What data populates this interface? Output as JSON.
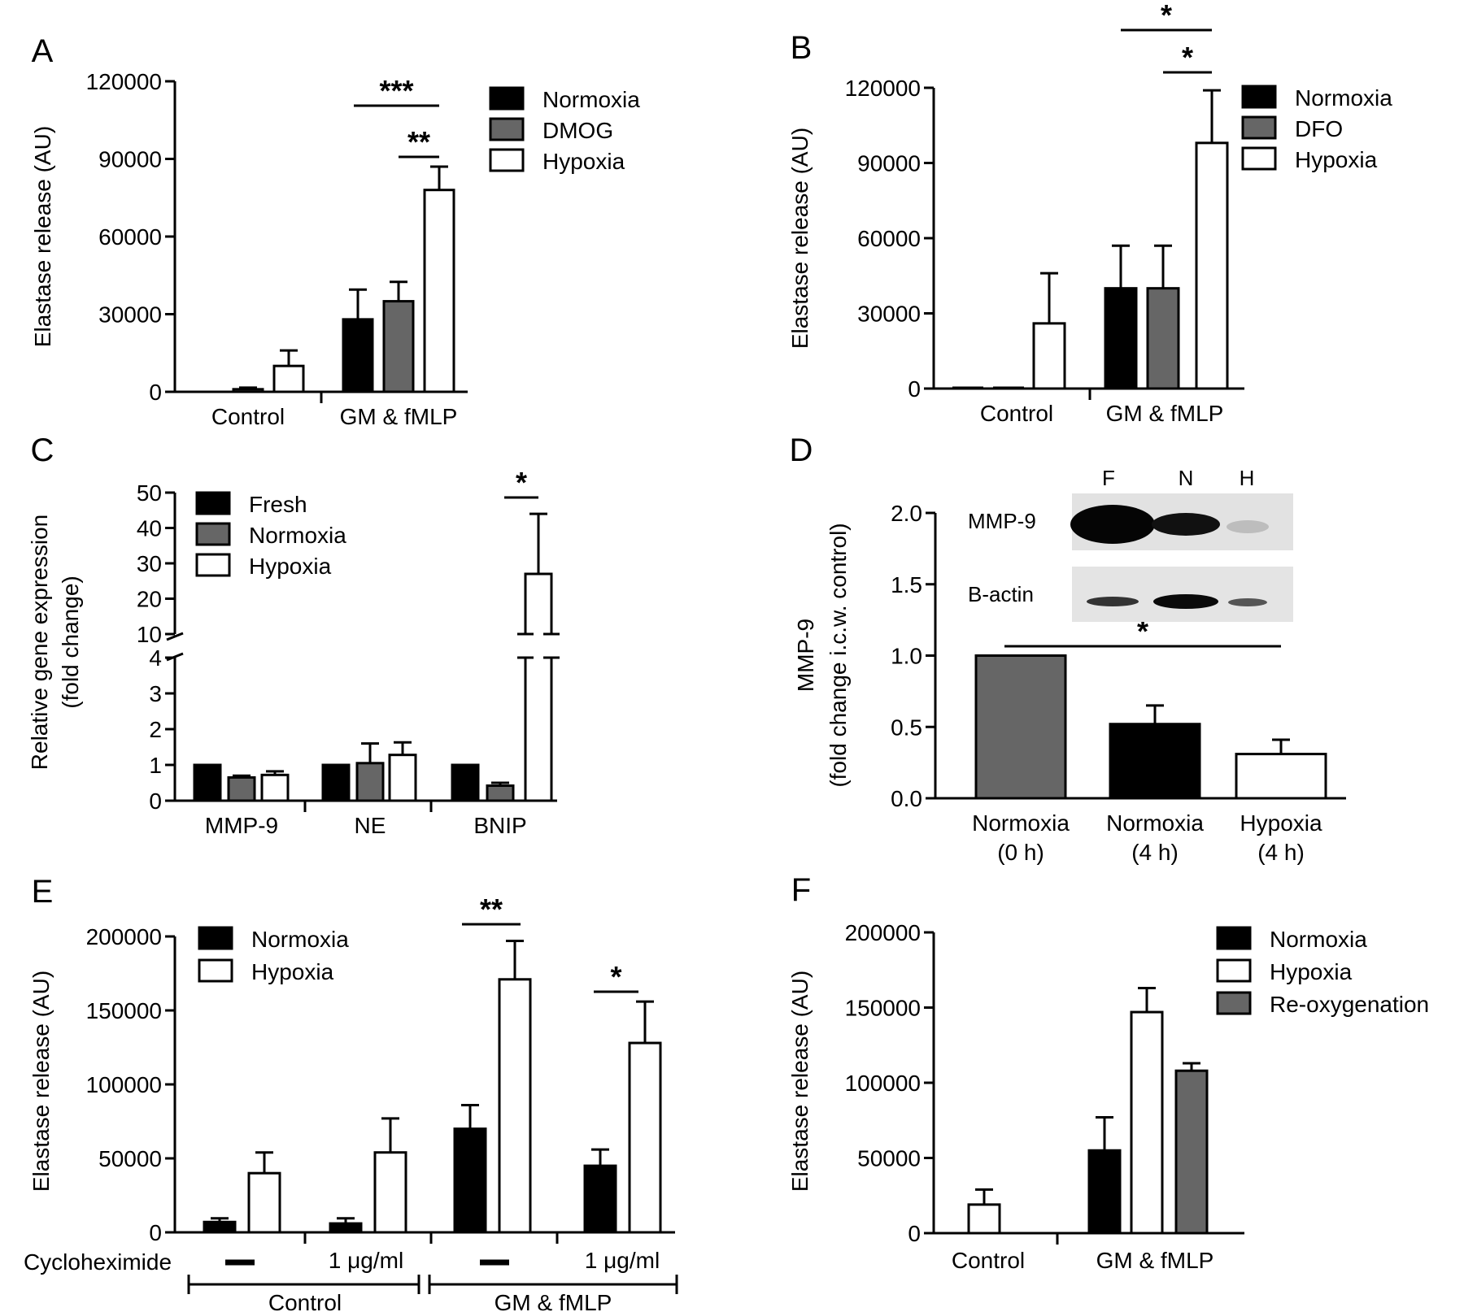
{
  "colors": {
    "black": "#000000",
    "grey": "#666666",
    "white": "#ffffff"
  },
  "panels": [
    {
      "letter": "A",
      "ylabel": "Elastase release (AU)",
      "ticks": [
        "0",
        "30000",
        "60000",
        "90000",
        "120000"
      ],
      "groups": [
        "Control",
        "GM & fMLP"
      ],
      "legend": [
        {
          "label": "Normoxia",
          "color": "black"
        },
        {
          "label": "DMOG",
          "color": "grey"
        },
        {
          "label": "Hypoxia",
          "color": "white"
        }
      ],
      "sig": [
        "***",
        "**"
      ]
    },
    {
      "letter": "B",
      "ylabel": "Elastase release (AU)",
      "ticks": [
        "0",
        "30000",
        "60000",
        "90000",
        "120000"
      ],
      "groups": [
        "Control",
        "GM & fMLP"
      ],
      "legend": [
        {
          "label": "Normoxia",
          "color": "black"
        },
        {
          "label": "DFO",
          "color": "grey"
        },
        {
          "label": "Hypoxia",
          "color": "white"
        }
      ],
      "sig": [
        "*",
        "*"
      ]
    },
    {
      "letter": "C",
      "ylabel1": "Relative gene expression",
      "ylabel2": "(fold change)",
      "ticks_low": [
        "0",
        "1",
        "2",
        "3",
        "4"
      ],
      "ticks_high": [
        "10",
        "20",
        "30",
        "40",
        "50"
      ],
      "groups": [
        "MMP-9",
        "NE",
        "BNIP"
      ],
      "legend": [
        {
          "label": "Fresh",
          "color": "black"
        },
        {
          "label": "Normoxia",
          "color": "grey"
        },
        {
          "label": "Hypoxia",
          "color": "white"
        }
      ],
      "sig": [
        "*"
      ]
    },
    {
      "letter": "D",
      "ylabel1": "MMP-9",
      "ylabel2": "(fold change i.c.w. control)",
      "ticks": [
        "0.0",
        "0.5",
        "1.0",
        "1.5",
        "2.0"
      ],
      "categories": [
        [
          "Normoxia",
          "(0 h)"
        ],
        [
          "Normoxia",
          "(4 h)"
        ],
        [
          "Hypoxia",
          "(4 h)"
        ]
      ],
      "blot": {
        "lanes": [
          "F",
          "N",
          "H"
        ],
        "rows": [
          "MMP-9",
          "B-actin"
        ]
      },
      "sig": [
        "*"
      ]
    },
    {
      "letter": "E",
      "ylabel": "Elastase release (AU)",
      "ticks": [
        "0",
        "50000",
        "100000",
        "150000",
        "200000"
      ],
      "legend": [
        {
          "label": "Normoxia",
          "color": "black"
        },
        {
          "label": "Hypoxia",
          "color": "white"
        }
      ],
      "treatment_label": "Cycloheximide",
      "treatments": [
        "—",
        "1 μg/ml",
        "—",
        "1 μg/ml"
      ],
      "groups": [
        "Control",
        "GM & fMLP"
      ],
      "sig": [
        "**",
        "*"
      ]
    },
    {
      "letter": "F",
      "ylabel": "Elastase release (AU)",
      "ticks": [
        "0",
        "50000",
        "100000",
        "150000",
        "200000"
      ],
      "groups": [
        "Control",
        "GM & fMLP"
      ],
      "legend": [
        {
          "label": "Normoxia",
          "color": "black"
        },
        {
          "label": "Hypoxia",
          "color": "white"
        },
        {
          "label": "Re-oxygenation",
          "color": "grey"
        }
      ]
    }
  ],
  "chart_data": [
    {
      "panel": "A",
      "type": "bar",
      "ylim": [
        0,
        120000
      ],
      "categories": [
        "Control",
        "GM & fMLP"
      ],
      "series": [
        {
          "name": "Normoxia",
          "values": [
            0,
            28000
          ],
          "errors": [
            0,
            11500
          ]
        },
        {
          "name": "DMOG",
          "values": [
            1000,
            35000
          ],
          "errors": [
            600,
            7500
          ]
        },
        {
          "name": "Hypoxia",
          "values": [
            10000,
            78000
          ],
          "errors": [
            6000,
            9000
          ]
        }
      ]
    },
    {
      "panel": "B",
      "type": "bar",
      "ylim": [
        0,
        120000
      ],
      "categories": [
        "Control",
        "GM & fMLP"
      ],
      "series": [
        {
          "name": "Normoxia",
          "values": [
            0,
            40000
          ],
          "errors": [
            0,
            17000
          ]
        },
        {
          "name": "DFO",
          "values": [
            0,
            40000
          ],
          "errors": [
            0,
            17000
          ]
        },
        {
          "name": "Hypoxia",
          "values": [
            26000,
            98000
          ],
          "errors": [
            20000,
            21000
          ]
        }
      ]
    },
    {
      "panel": "C",
      "type": "bar",
      "ylim": [
        0,
        50
      ],
      "axis_break": [
        4,
        10
      ],
      "categories": [
        "MMP-9",
        "NE",
        "BNIP"
      ],
      "series": [
        {
          "name": "Fresh",
          "values": [
            1,
            1,
            1
          ],
          "errors": [
            0,
            0,
            0
          ]
        },
        {
          "name": "Normoxia",
          "values": [
            0.65,
            1.05,
            0.42
          ],
          "errors": [
            0.05,
            0.55,
            0.08
          ]
        },
        {
          "name": "Hypoxia",
          "values": [
            0.72,
            1.28,
            27
          ],
          "errors": [
            0.1,
            0.35,
            17
          ]
        }
      ]
    },
    {
      "panel": "D",
      "type": "bar",
      "ylim": [
        0,
        2.0
      ],
      "categories": [
        "Normoxia (0 h)",
        "Normoxia (4 h)",
        "Hypoxia (4 h)"
      ],
      "values": [
        1.0,
        0.52,
        0.31
      ],
      "errors": [
        0,
        0.13,
        0.1
      ],
      "fills": [
        "grey",
        "black",
        "white"
      ]
    },
    {
      "panel": "E",
      "type": "bar",
      "ylim": [
        0,
        200000
      ],
      "categories": [
        "Control —",
        "Control 1 μg/ml",
        "GM & fMLP —",
        "GM & fMLP 1 μg/ml"
      ],
      "series": [
        {
          "name": "Normoxia",
          "values": [
            7000,
            6000,
            70000,
            45000
          ],
          "errors": [
            2500,
            3500,
            16000,
            11000
          ]
        },
        {
          "name": "Hypoxia",
          "values": [
            40000,
            54000,
            171000,
            128000
          ],
          "errors": [
            14000,
            23000,
            26000,
            28000
          ]
        }
      ]
    },
    {
      "panel": "F",
      "type": "bar",
      "ylim": [
        0,
        200000
      ],
      "categories": [
        "Control",
        "GM & fMLP"
      ],
      "series": [
        {
          "name": "Normoxia",
          "values": [
            0,
            55000
          ],
          "errors": [
            0,
            22000
          ]
        },
        {
          "name": "Hypoxia",
          "values": [
            19000,
            147000
          ],
          "errors": [
            10000,
            16000
          ]
        },
        {
          "name": "Re-oxygenation",
          "values": [
            0,
            108000
          ],
          "errors": [
            0,
            5000
          ]
        }
      ]
    }
  ]
}
